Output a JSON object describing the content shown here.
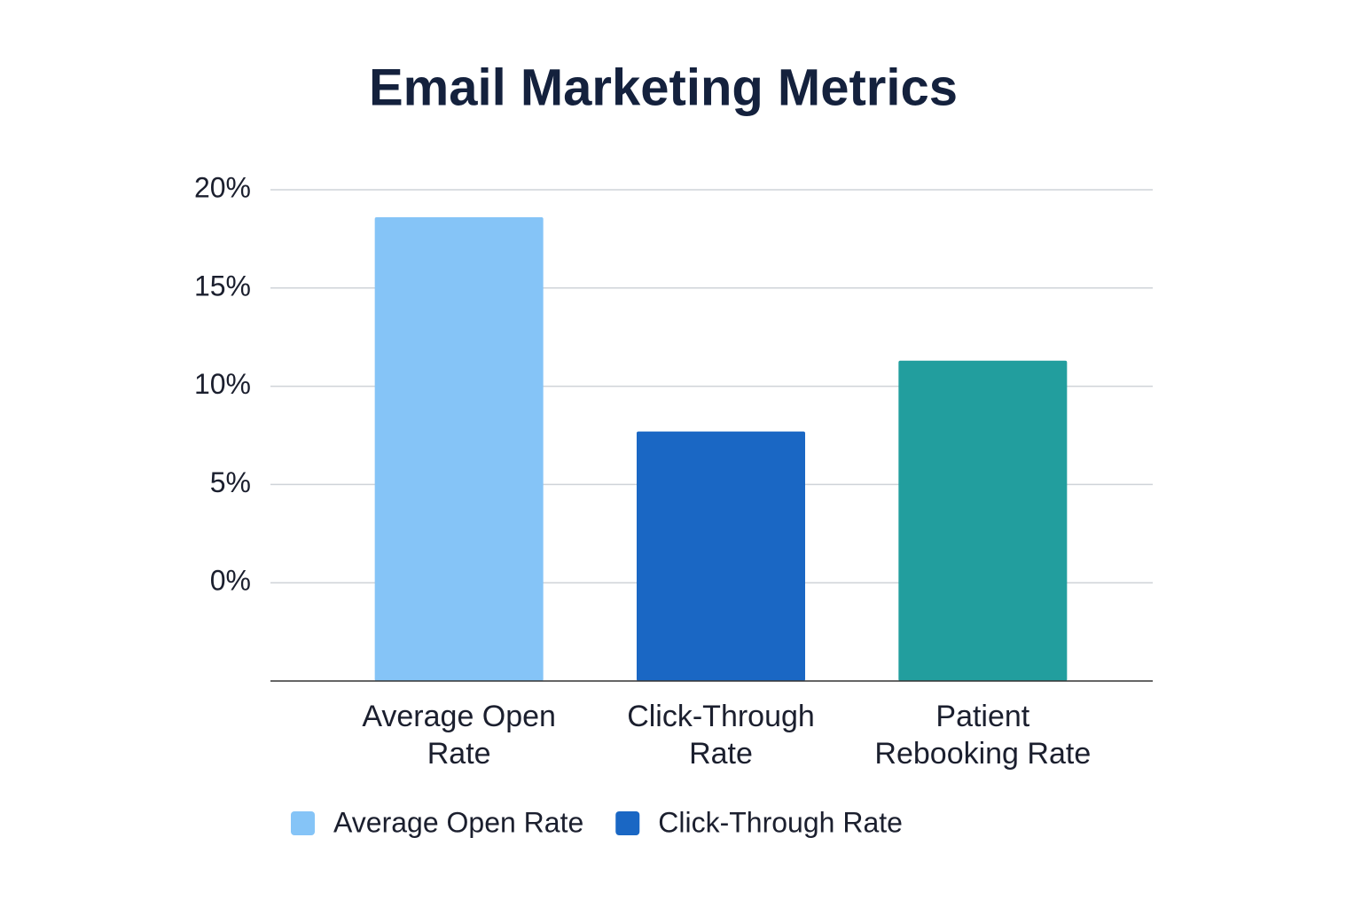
{
  "chart_data": {
    "type": "bar",
    "title": "Email Marketing Metrics",
    "categories": [
      "Average Open Rate",
      "Click-Through Rate",
      "Patient Rebooking Rate"
    ],
    "values": [
      18.6,
      7.7,
      11.3
    ],
    "colors": [
      "#85c4f7",
      "#1a67c4",
      "#229e9e"
    ],
    "ylim": [
      -5,
      20
    ],
    "yticks": [
      {
        "value": 0,
        "label": "0%"
      },
      {
        "value": 5,
        "label": "5%"
      },
      {
        "value": 10,
        "label": "10%"
      },
      {
        "value": 15,
        "label": "15%"
      },
      {
        "value": 20,
        "label": "20%"
      }
    ],
    "grid": true,
    "legend": [
      {
        "name": "Average Open Rate",
        "color": "#85c4f7"
      },
      {
        "name": "Click-Through Rate",
        "color": "#1a67c4"
      }
    ]
  }
}
